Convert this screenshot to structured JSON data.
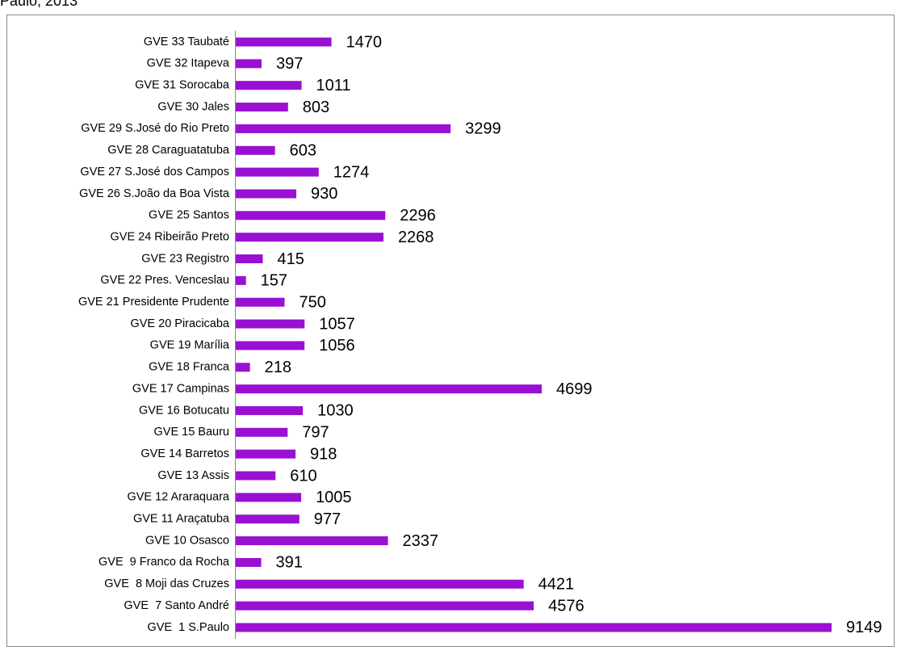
{
  "chart_data": {
    "type": "bar",
    "orientation": "horizontal",
    "title": "Paulo, 2013",
    "categories": [
      "GVE 33 Taubaté",
      "GVE 32 Itapeva",
      "GVE 31 Sorocaba",
      "GVE 30 Jales",
      "GVE 29 S.José do Rio Preto",
      "GVE 28 Caraguatatuba",
      "GVE 27 S.José dos Campos",
      "GVE 26 S.João da Boa Vista",
      "GVE 25 Santos",
      "GVE 24 Ribeirão Preto",
      "GVE 23 Registro",
      "GVE 22 Pres. Venceslau",
      "GVE 21 Presidente Prudente",
      "GVE 20 Piracicaba",
      "GVE 19 Marília",
      "GVE 18 Franca",
      "GVE 17 Campinas",
      "GVE 16 Botucatu",
      "GVE 15 Bauru",
      "GVE 14 Barretos",
      "GVE 13 Assis",
      "GVE 12 Araraquara",
      "GVE 11 Araçatuba",
      "GVE 10 Osasco",
      "GVE  9 Franco da Rocha",
      "GVE  8 Moji das Cruzes",
      "GVE  7 Santo André",
      "GVE  1 S.Paulo"
    ],
    "values": [
      1470,
      397,
      1011,
      803,
      3299,
      603,
      1274,
      930,
      2296,
      2268,
      415,
      157,
      750,
      1057,
      1056,
      218,
      4699,
      1030,
      797,
      918,
      610,
      1005,
      977,
      2337,
      391,
      4421,
      4576,
      9149
    ],
    "color": "#9a10d2"
  }
}
